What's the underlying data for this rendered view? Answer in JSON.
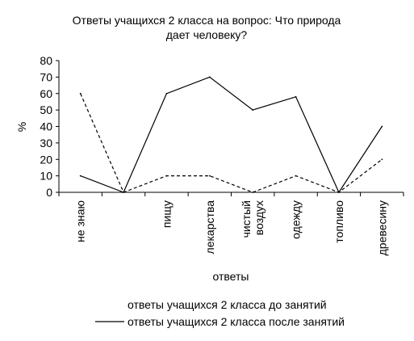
{
  "chart_data": {
    "type": "line",
    "title_line1": "Ответы учащихся 2 класса на вопрос: Что природа",
    "title_line2": "дает человеку?",
    "xlabel": "ответы",
    "ylabel": "%",
    "ylim": [
      0,
      80
    ],
    "yticks": [
      0,
      10,
      20,
      30,
      40,
      50,
      60,
      70,
      80
    ],
    "categories": [
      [
        "не знаю"
      ],
      [
        ""
      ],
      [
        "пищу"
      ],
      [
        "лекарства"
      ],
      [
        "чистый",
        "воздух"
      ],
      [
        "одежду"
      ],
      [
        "топливо"
      ],
      [
        "древесину"
      ]
    ],
    "series": [
      {
        "name": "ответы учащихся 2 класса до занятий",
        "style": "dashed",
        "color": "#000000",
        "values": [
          60,
          0,
          10,
          10,
          0,
          10,
          0,
          20
        ]
      },
      {
        "name": "ответы учащихся 2 класса после занятий",
        "style": "solid",
        "color": "#000000",
        "values": [
          10,
          0,
          60,
          70,
          50,
          58,
          0,
          40
        ]
      }
    ],
    "grid": false,
    "legend_position": "bottom"
  }
}
